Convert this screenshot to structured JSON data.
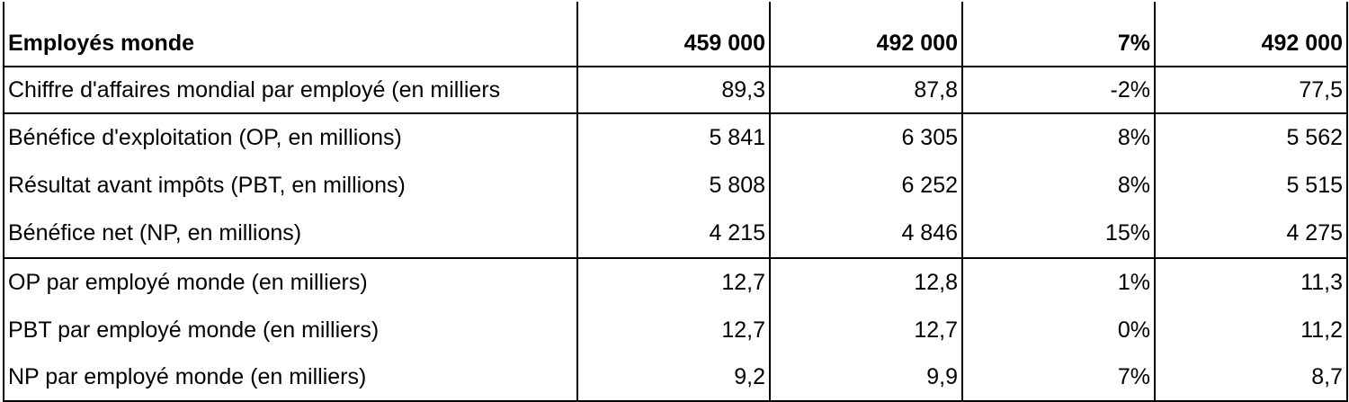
{
  "table": {
    "rows": [
      {
        "label": "Employés monde",
        "values": [
          "459 000",
          "492 000",
          "7%",
          "492 000"
        ]
      },
      {
        "label": "Chiffre d'affaires mondial par employé (en milliers",
        "values": [
          "89,3",
          "87,8",
          "-2%",
          "77,5"
        ]
      },
      {
        "label": "Bénéfice d'exploitation (OP, en millions)",
        "values": [
          "5 841",
          "6 305",
          "8%",
          "5 562"
        ]
      },
      {
        "label": "Résultat avant impôts (PBT, en millions)",
        "values": [
          "5 808",
          "6 252",
          "8%",
          "5 515"
        ]
      },
      {
        "label": "Bénéfice net (NP, en millions)",
        "values": [
          "4 215",
          "4 846",
          "15%",
          "4 275"
        ]
      },
      {
        "label": "OP par employé monde (en milliers)",
        "values": [
          "12,7",
          "12,8",
          "1%",
          "11,3"
        ]
      },
      {
        "label": "PBT par employé monde (en milliers)",
        "values": [
          "12,7",
          "12,7",
          "0%",
          "11,2"
        ]
      },
      {
        "label": "NP par employé monde (en milliers)",
        "values": [
          "9,2",
          "9,9",
          "7%",
          "8,7"
        ]
      }
    ]
  }
}
